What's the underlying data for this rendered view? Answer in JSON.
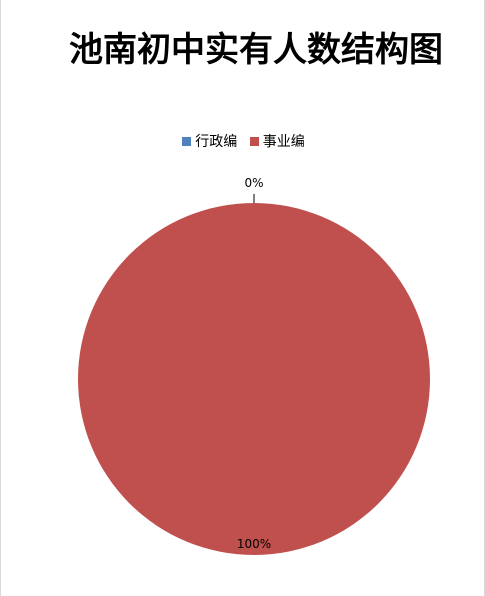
{
  "chart_data": {
    "type": "pie",
    "title": "池南初中实有人数结构图",
    "categories": [
      "行政编",
      "事业编"
    ],
    "values": [
      0,
      100
    ],
    "data_labels": [
      "0%",
      "100%"
    ],
    "legend_placement": "top",
    "colors": [
      "#4f81bd",
      "#c0504d"
    ]
  }
}
